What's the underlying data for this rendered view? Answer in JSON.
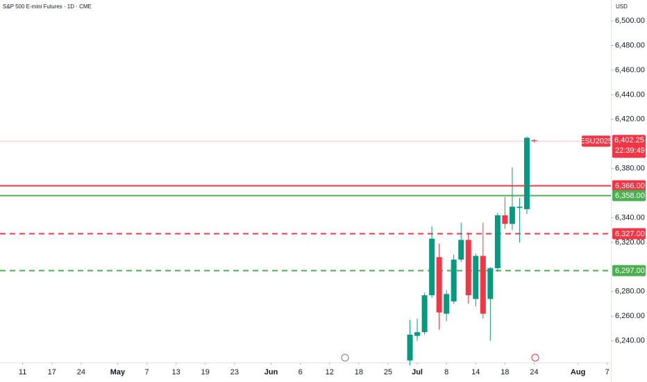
{
  "chart_data": {
    "type": "candlestick",
    "title": "S&P 500 E-mini Futures · 1D · CME",
    "currency": "USD",
    "up_color": "#089981",
    "down_color": "#f23645",
    "x": [
      53,
      54,
      55,
      56,
      57,
      58,
      59,
      60,
      61,
      62,
      63,
      64,
      65,
      66,
      67,
      68,
      69,
      70
    ],
    "open": [
      6224,
      6244,
      6247,
      6277,
      6308,
      6262,
      6272,
      6306,
      6322,
      6274,
      6309,
      6274,
      6299,
      6342,
      6335,
      6348,
      6347,
      6403
    ],
    "high": [
      6257,
      6258,
      6279,
      6333,
      6319,
      6281,
      6310,
      6336,
      6328,
      6311,
      6336,
      6300,
      6344,
      6357,
      6381,
      6356,
      6406,
      6404
    ],
    "low": [
      6220,
      6240,
      6245,
      6275,
      6249,
      6256,
      6270,
      6304,
      6270,
      6268,
      6258,
      6240,
      6296,
      6331,
      6330,
      6320,
      6343,
      6401
    ],
    "close": [
      6245,
      6247,
      6277,
      6323,
      6263,
      6278,
      6306,
      6322,
      6277,
      6309,
      6262,
      6299,
      6342,
      6335,
      6349,
      6349,
      6405,
      6402.25
    ],
    "xlim": [
      -3.1,
      80.5
    ],
    "xticks": [
      {
        "value": 0,
        "label": "11"
      },
      {
        "value": 4,
        "label": "17"
      },
      {
        "value": 8,
        "label": "24"
      },
      {
        "value": 13,
        "label": "May"
      },
      {
        "value": 17,
        "label": "7"
      },
      {
        "value": 21,
        "label": "13"
      },
      {
        "value": 25,
        "label": "19"
      },
      {
        "value": 29,
        "label": "23"
      },
      {
        "value": 34,
        "label": "Jun"
      },
      {
        "value": 38,
        "label": "6"
      },
      {
        "value": 42,
        "label": "12"
      },
      {
        "value": 46,
        "label": "18"
      },
      {
        "value": 50,
        "label": "25"
      },
      {
        "value": 54,
        "label": "Jul"
      },
      {
        "value": 58,
        "label": "8"
      },
      {
        "value": 62,
        "label": "14"
      },
      {
        "value": 66,
        "label": "18"
      },
      {
        "value": 70,
        "label": "24"
      },
      {
        "value": 76,
        "label": "Aug"
      },
      {
        "value": 80,
        "label": "7"
      }
    ],
    "ylim": [
      6222.3,
      6517
    ],
    "yticks": [
      {
        "value": 6240,
        "label": "6,240.00"
      },
      {
        "value": 6260,
        "label": "6,260.00"
      },
      {
        "value": 6280,
        "label": "6,280.00"
      },
      {
        "value": 6320,
        "label": "6,320.00"
      },
      {
        "value": 6340,
        "label": "6,340.00"
      },
      {
        "value": 6380,
        "label": "6,380.00"
      },
      {
        "value": 6420,
        "label": "6,420.00"
      },
      {
        "value": 6440,
        "label": "6,440.00"
      },
      {
        "value": 6460,
        "label": "6,460.00"
      },
      {
        "value": 6480,
        "label": "6,480.00"
      },
      {
        "value": 6500,
        "label": "6,500.00"
      }
    ],
    "levels": [
      {
        "value": 6366,
        "label": "6,366.00",
        "color": "#f23645",
        "dashed": false
      },
      {
        "value": 6358,
        "label": "6,358.00",
        "color": "#4caf50",
        "dashed": false
      },
      {
        "value": 6327,
        "label": "6,327.00",
        "color": "#f23645",
        "dashed": true
      },
      {
        "value": 6297,
        "label": "6,297.00",
        "color": "#4caf50",
        "dashed": true
      }
    ],
    "last_price": {
      "symbol": "ESU2025",
      "value": 6402.25,
      "label": "6,402.25",
      "countdown": "22:39:49",
      "color": "#f23645"
    }
  }
}
